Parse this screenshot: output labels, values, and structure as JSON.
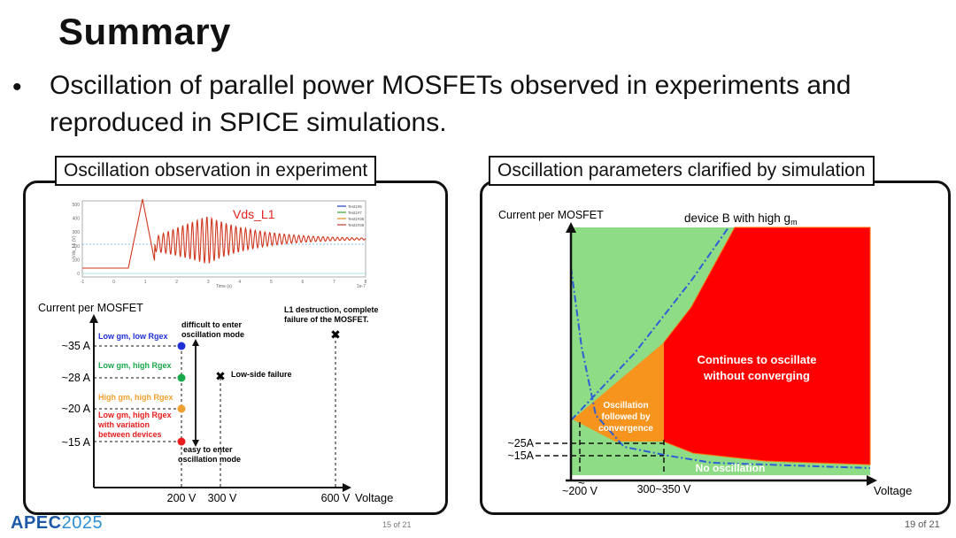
{
  "slide": {
    "title": "Summary",
    "bullet": "•",
    "bullet_text": "Oscillation of parallel power MOSFETs observed in experiments and reproduced in SPICE simulations."
  },
  "left_panel": {
    "label": "Oscillation observation in experiment",
    "waveform": {
      "label": "Vds_L1",
      "y_ticks": [
        "500",
        "400",
        "300",
        "200",
        "100",
        "0"
      ],
      "x_ticks": [
        "-1",
        "0",
        "1",
        "2",
        "3",
        "4",
        "5",
        "6",
        "7",
        "8"
      ],
      "x_exp": "1e-7",
      "y_axis_label": "Vds_L1 (V)",
      "x_axis_label": "Time (s)",
      "legend": [
        "Test1#6",
        "Test1#7",
        "Test1#38",
        "Test1#39"
      ],
      "legend_colors": [
        "#1f3fbf",
        "#39a839",
        "#e08a1e",
        "#c0392b"
      ]
    },
    "chart": {
      "ylabel": "Current per MOSFET",
      "xlabel": "Voltage",
      "y_ticks": [
        "~35 A",
        "~28 A",
        "~20 A",
        "~15 A"
      ],
      "x_ticks": [
        "200 V",
        "300 V",
        "600 V"
      ],
      "points": [
        {
          "label": "Low gm, low Rgex",
          "color": "#1f2fd6"
        },
        {
          "label": "Low gm, high Rgex",
          "color": "#1aa84a"
        },
        {
          "label": "High gm, high Rgex",
          "color": "#f0a030"
        },
        {
          "label_lines": [
            "Low gm, high Rgex",
            "with variation",
            "between devices"
          ],
          "color": "#e81c1c"
        }
      ],
      "difficult_lines": [
        "difficult to enter",
        "oscillation mode"
      ],
      "easy_lines": [
        "easy to enter",
        "oscillation mode"
      ],
      "low_side_failure": "Low-side failure",
      "l1_lines": [
        "L1 destruction, complete",
        "failure of the MOSFET."
      ],
      "cross_glyph": "✖"
    }
  },
  "right_panel": {
    "label": "Oscillation parameters clarified by simulation",
    "ylabel": "Current per MOSFET",
    "xlabel": "Voltage",
    "device_b_prefix": "device B with high g",
    "device_b_sub": "m",
    "y_ticks": [
      "~25A",
      "~15A"
    ],
    "x_ticks": [
      "~200 V",
      "300~350 V"
    ],
    "break_glyph": "≈",
    "regions": {
      "continue": [
        "Continues to oscillate",
        "without converging"
      ],
      "converge": [
        "Oscillation",
        "followed by",
        "convergence"
      ],
      "none": "No oscillation"
    },
    "colors": {
      "green": "#8fdc86",
      "red": "#ff0000",
      "orange": "#f7941d",
      "line": "#2d5fd6"
    }
  },
  "footer": {
    "logo_main": "APEC",
    "logo_year": "2025",
    "page_mid": "15 of 21",
    "page_right": "19 of 21"
  }
}
